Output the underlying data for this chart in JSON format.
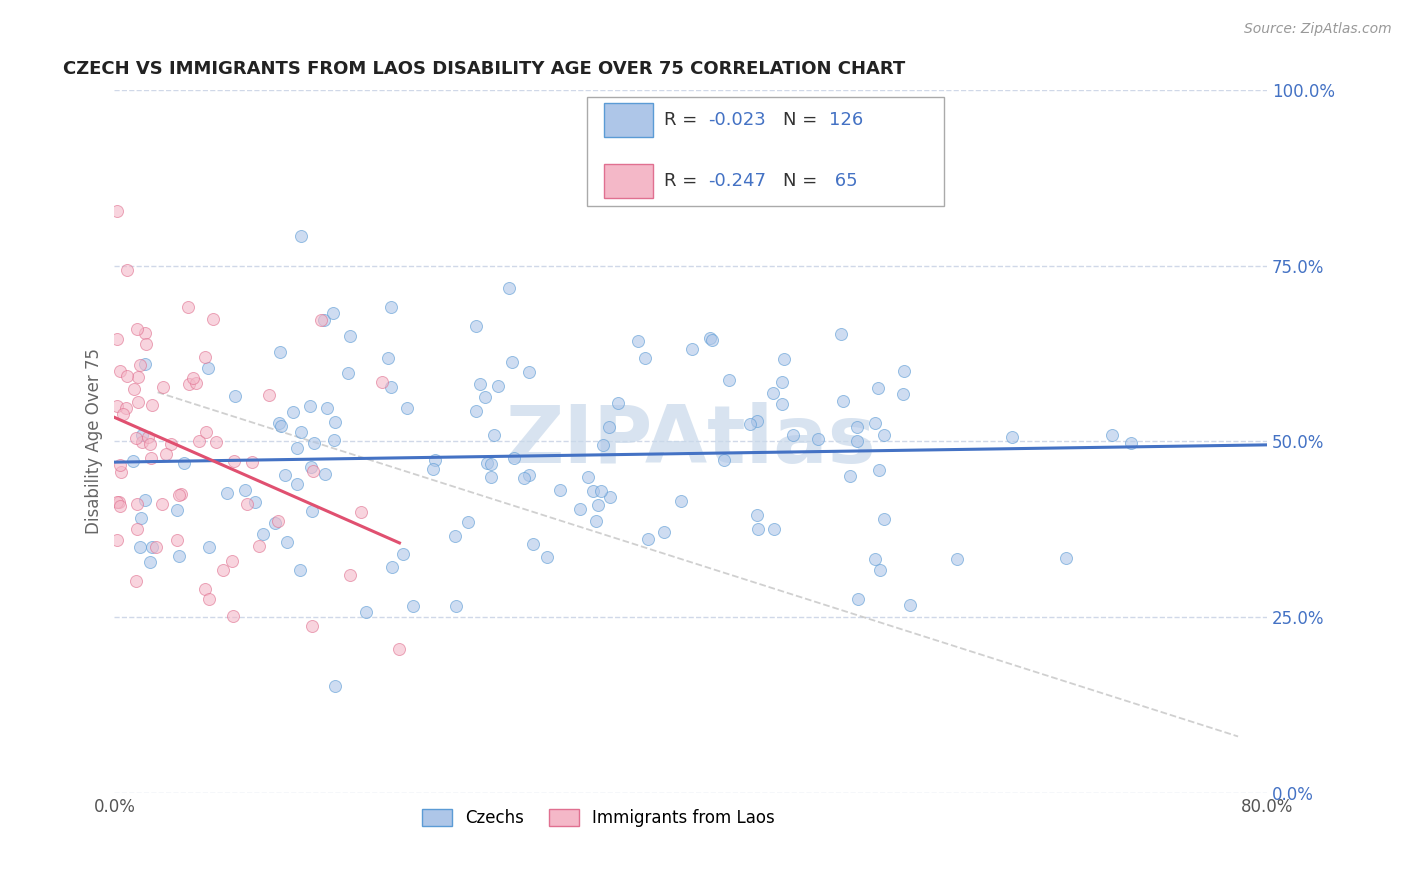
{
  "title": "CZECH VS IMMIGRANTS FROM LAOS DISABILITY AGE OVER 75 CORRELATION CHART",
  "source_text": "Source: ZipAtlas.com",
  "ylabel": "Disability Age Over 75",
  "xlim": [
    0.0,
    80.0
  ],
  "ylim": [
    0.0,
    100.0
  ],
  "yticks": [
    0.0,
    25.0,
    50.0,
    75.0,
    100.0
  ],
  "czech_color": "#aec6e8",
  "czech_edge_color": "#5b9bd5",
  "laos_color": "#f4b8c8",
  "laos_edge_color": "#e07090",
  "trend_czech_color": "#4472c4",
  "trend_laos_color": "#e05070",
  "trend_diagonal_color": "#c8c8c8",
  "background_color": "#ffffff",
  "grid_color": "#d0d8e8",
  "title_color": "#222222",
  "axis_label_color": "#666666",
  "watermark_color": "#c8d8ea",
  "R_czech": -0.023,
  "N_czech": 126,
  "R_laos": -0.247,
  "N_laos": 65,
  "marker_size": 75,
  "alpha": 0.6,
  "legend_blue_color": "#4472c4",
  "legend_pink_color": "#e05070"
}
